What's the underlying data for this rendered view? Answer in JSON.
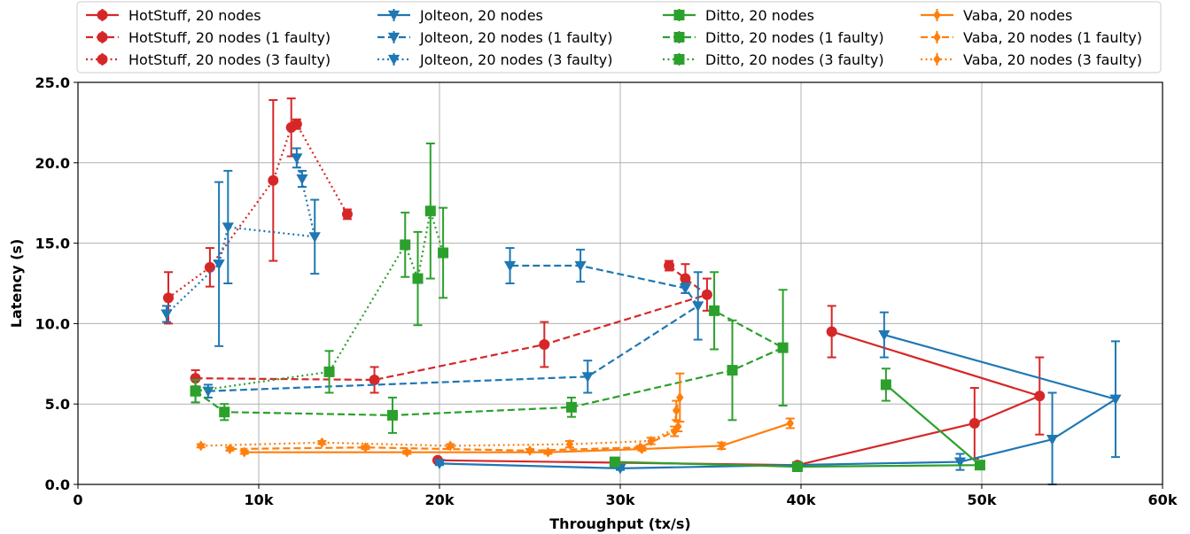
{
  "chart_data": {
    "type": "line",
    "title": "",
    "xlabel": "Throughput (tx/s)",
    "ylabel": "Latency (s)",
    "xlim": [
      0,
      60000
    ],
    "ylim": [
      0,
      25
    ],
    "xticks": [
      0,
      10000,
      20000,
      30000,
      40000,
      50000,
      60000
    ],
    "xtick_labels": [
      "0",
      "10k",
      "20k",
      "30k",
      "40k",
      "50k",
      "60k"
    ],
    "yticks": [
      0,
      5,
      10,
      15,
      20,
      25
    ],
    "ytick_labels": [
      "0.0",
      "5.0",
      "10.0",
      "15.0",
      "20.0",
      "25.0"
    ],
    "grid": true,
    "legend_position": "top",
    "colors": {
      "HotStuff": "#d62728",
      "Jolteon": "#1f77b4",
      "Ditto": "#2ca02c",
      "Vaba": "#ff7f0e"
    },
    "series": [
      {
        "name": "HotStuff, 20 nodes",
        "protocol": "HotStuff",
        "style": "solid",
        "marker": "circle",
        "points": [
          [
            19900,
            1.5,
            0.05
          ],
          [
            39800,
            1.2,
            0.05
          ],
          [
            49600,
            3.8,
            2.2
          ],
          [
            53200,
            5.5,
            2.4
          ],
          [
            41700,
            9.5,
            1.6
          ]
        ]
      },
      {
        "name": "HotStuff, 20 nodes (1 faulty)",
        "protocol": "HotStuff",
        "style": "dashed",
        "marker": "circle",
        "points": [
          [
            6500,
            6.6,
            0.5
          ],
          [
            16400,
            6.5,
            0.8
          ],
          [
            25800,
            8.7,
            1.4
          ],
          [
            34800,
            11.8,
            1.0
          ],
          [
            33600,
            12.8,
            0.9
          ],
          [
            32700,
            13.6,
            0.3
          ]
        ]
      },
      {
        "name": "HotStuff, 20 nodes (3 faulty)",
        "protocol": "HotStuff",
        "style": "dotted",
        "marker": "circle",
        "points": [
          [
            5000,
            11.6,
            1.6
          ],
          [
            7300,
            13.5,
            1.2
          ],
          [
            10800,
            18.9,
            5.0
          ],
          [
            11800,
            22.2,
            1.8
          ],
          [
            12100,
            22.4,
            0.3
          ],
          [
            14900,
            16.8,
            0.3
          ]
        ]
      },
      {
        "name": "Jolteon, 20 nodes",
        "protocol": "Jolteon",
        "style": "solid",
        "marker": "triangle-down",
        "points": [
          [
            20000,
            1.3,
            0.1
          ],
          [
            30000,
            1.0,
            0.1
          ],
          [
            48800,
            1.4,
            0.5
          ],
          [
            53900,
            2.8,
            2.9
          ],
          [
            57400,
            5.3,
            3.6
          ],
          [
            44600,
            9.3,
            1.4
          ]
        ]
      },
      {
        "name": "Jolteon, 20 nodes (1 faulty)",
        "protocol": "Jolteon",
        "style": "dashed",
        "marker": "triangle-down",
        "points": [
          [
            7200,
            5.8,
            0.4
          ],
          [
            28200,
            6.7,
            1.0
          ],
          [
            34300,
            11.1,
            2.1
          ],
          [
            33600,
            12.2,
            0.3
          ],
          [
            27800,
            13.6,
            1.0
          ],
          [
            23900,
            13.6,
            1.1
          ]
        ]
      },
      {
        "name": "Jolteon, 20 nodes (3 faulty)",
        "protocol": "Jolteon",
        "style": "dotted",
        "marker": "triangle-down",
        "points": [
          [
            4900,
            10.6,
            0.5
          ],
          [
            7800,
            13.7,
            5.1
          ],
          [
            8300,
            16.0,
            3.5
          ],
          [
            13100,
            15.4,
            2.3
          ],
          [
            12100,
            20.3,
            0.6
          ],
          [
            12400,
            19.0,
            0.5
          ]
        ]
      },
      {
        "name": "Ditto, 20 nodes",
        "protocol": "Ditto",
        "style": "solid",
        "marker": "square",
        "points": [
          [
            29700,
            1.4,
            0.05
          ],
          [
            39800,
            1.1,
            0.05
          ],
          [
            49900,
            1.2,
            0.05
          ],
          [
            44700,
            6.2,
            1.0
          ]
        ]
      },
      {
        "name": "Ditto, 20 nodes (1 faulty)",
        "protocol": "Ditto",
        "style": "dashed",
        "marker": "square",
        "points": [
          [
            6500,
            5.8,
            0.7
          ],
          [
            8100,
            4.5,
            0.5
          ],
          [
            17400,
            4.3,
            1.1
          ],
          [
            27300,
            4.8,
            0.6
          ],
          [
            36200,
            7.1,
            3.1
          ],
          [
            39000,
            8.5,
            3.6
          ],
          [
            35200,
            10.8,
            2.4
          ]
        ]
      },
      {
        "name": "Ditto, 20 nodes (3 faulty)",
        "protocol": "Ditto",
        "style": "dotted",
        "marker": "square",
        "points": [
          [
            6500,
            5.8,
            0.7
          ],
          [
            13900,
            7.0,
            1.3
          ],
          [
            18100,
            14.9,
            2.0
          ],
          [
            18800,
            12.8,
            2.9
          ],
          [
            19500,
            17.0,
            4.2
          ],
          [
            20200,
            14.4,
            2.8
          ]
        ]
      },
      {
        "name": "Vaba, 20 nodes",
        "protocol": "Vaba",
        "style": "solid",
        "marker": "diamond",
        "points": [
          [
            9200,
            2.0,
            0.1
          ],
          [
            18200,
            2.0,
            0.1
          ],
          [
            26000,
            2.0,
            0.1
          ],
          [
            31200,
            2.2,
            0.1
          ],
          [
            35600,
            2.4,
            0.2
          ],
          [
            39400,
            3.8,
            0.3
          ]
        ]
      },
      {
        "name": "Vaba, 20 nodes (1 faulty)",
        "protocol": "Vaba",
        "style": "dashed",
        "marker": "diamond",
        "points": [
          [
            8400,
            2.2,
            0.1
          ],
          [
            15900,
            2.3,
            0.1
          ],
          [
            25000,
            2.1,
            0.1
          ],
          [
            31100,
            2.3,
            0.1
          ],
          [
            33000,
            3.3,
            0.3
          ],
          [
            33100,
            4.6,
            0.6
          ],
          [
            33300,
            5.4,
            1.5
          ]
        ]
      },
      {
        "name": "Vaba, 20 nodes (3 faulty)",
        "protocol": "Vaba",
        "style": "dotted",
        "marker": "diamond",
        "points": [
          [
            6800,
            2.4,
            0.1
          ],
          [
            13500,
            2.6,
            0.1
          ],
          [
            20600,
            2.4,
            0.1
          ],
          [
            27200,
            2.5,
            0.2
          ],
          [
            31700,
            2.7,
            0.2
          ],
          [
            33200,
            3.6,
            0.3
          ]
        ]
      }
    ]
  }
}
